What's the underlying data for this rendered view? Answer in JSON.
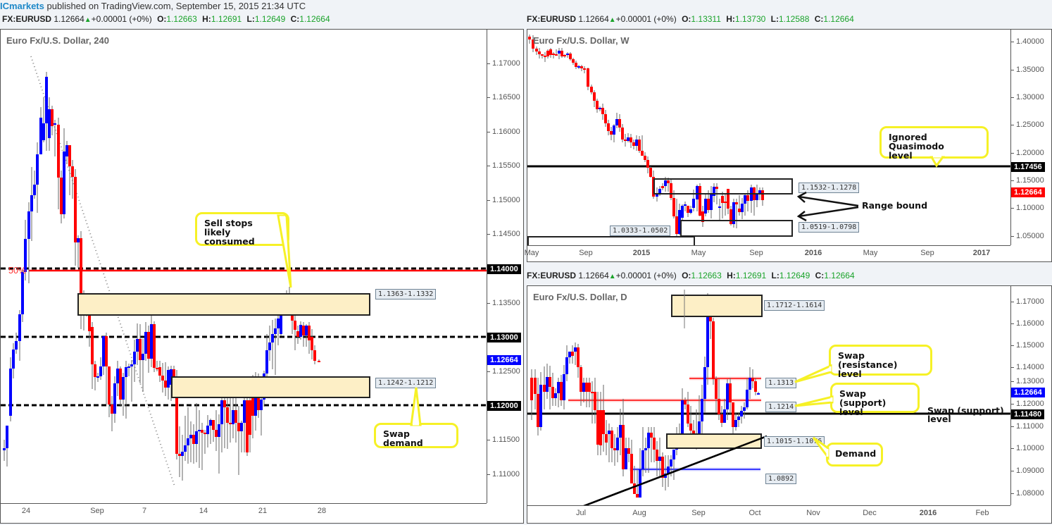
{
  "publish": {
    "brand": "ICmarkets",
    "text": " published on TradingView.com, September 15, 2015 21:34 UTC"
  },
  "colors": {
    "bull": "#0000ff",
    "bear": "#ff0000",
    "ohlc_value": "#1aa32a",
    "zone_fill": "#fdefc6",
    "callout_border": "#f6f126"
  },
  "panels": {
    "h4": {
      "legend": {
        "symbol": "FX:EURUSD",
        "price": "1.12664",
        "change": "+0.00001 (+0%)",
        "o_label": "O:",
        "o": "1.12663",
        "h_label": "H:",
        "h": "1.12691",
        "l_label": "L:",
        "l": "1.12649",
        "c_label": "C:",
        "c": "1.12664"
      },
      "title": "Euro Fx/U.S. Dollar, 240",
      "y_ticks": [
        "1.17000",
        "1.16500",
        "1.16000",
        "1.15500",
        "1.15000",
        "1.14500",
        "1.13500",
        "1.12500",
        "1.11500",
        "1.11000"
      ],
      "price_labels": [
        {
          "value": "1.14000",
          "color": "#000000"
        },
        {
          "value": "1.13000",
          "color": "#000000"
        },
        {
          "value": "1.12664",
          "color": "#0000ff"
        },
        {
          "value": "1.12000",
          "color": "#000000"
        }
      ],
      "x_ticks": [
        "24",
        "Sep",
        "7",
        "14",
        "21",
        "28"
      ],
      "fib_label": "50%",
      "zones": [
        {
          "label": "1.1363-1.1332"
        },
        {
          "label": "1.1242-1.1212"
        }
      ],
      "callouts": [
        {
          "text": "Sell stops likely consumed",
          "line1": "Sell stops",
          "line2": "likely consumed"
        },
        {
          "text": "Swap demand"
        }
      ]
    },
    "weekly": {
      "legend": {
        "symbol": "FX:EURUSD",
        "price": "1.12664",
        "change": "+0.00001 (+0%)",
        "o_label": "O:",
        "o": "1.13311",
        "h_label": "H:",
        "h": "1.13730",
        "l_label": "L:",
        "l": "1.12588",
        "c_label": "C:",
        "c": "1.12664"
      },
      "title": "Euro Fx/U.S. Dollar, W",
      "y_ticks": [
        "1.40000",
        "1.35000",
        "1.30000",
        "1.25000",
        "1.20000",
        "1.15000",
        "1.10000",
        "1.05000"
      ],
      "price_labels": [
        {
          "value": "1.17456",
          "color": "#000000"
        },
        {
          "value": "1.12664",
          "color": "#ff0000"
        }
      ],
      "x_ticks": [
        "May",
        "Sep",
        "2015",
        "May",
        "Sep",
        "2016",
        "May",
        "Sep",
        "2017"
      ],
      "zones": [
        {
          "label": "1.1532-1.1278"
        },
        {
          "label": "1.0519-1.0798"
        },
        {
          "label": "1.0333-1.0502"
        }
      ],
      "callouts": [
        {
          "line1": "Ignored Quasimodo",
          "line2": "level"
        }
      ],
      "annotation": "Range bound"
    },
    "daily": {
      "legend": {
        "symbol": "FX:EURUSD",
        "price": "1.12664",
        "change": "+0.00001 (+0%)",
        "o_label": "O:",
        "o": "1.12663",
        "h_label": "H:",
        "h": "1.12691",
        "l_label": "L:",
        "l": "1.12649",
        "c_label": "C:",
        "c": "1.12664"
      },
      "title": "Euro Fx/U.S. Dollar, D",
      "y_ticks": [
        "1.17000",
        "1.16000",
        "1.15000",
        "1.14000",
        "1.13000",
        "1.12000",
        "1.11000",
        "1.10000",
        "1.09000",
        "1.08000"
      ],
      "price_labels": [
        {
          "value": "1.12664",
          "color": "#0000ff"
        },
        {
          "value": "1.11480",
          "color": "#000000"
        }
      ],
      "x_ticks": [
        "Jul",
        "Aug",
        "Sep",
        "Oct",
        "Nov",
        "Dec",
        "2016",
        "Feb"
      ],
      "zones": [
        {
          "label": "1.1712-1.1614"
        },
        {
          "label": "1.1015-1.1076"
        }
      ],
      "level_tags": [
        {
          "label": "1.1313"
        },
        {
          "label": "1.1214"
        },
        {
          "label": "1.0892"
        }
      ],
      "callouts": [
        {
          "line1": "Swap (resistance)",
          "line2": "level"
        },
        {
          "line1": "Swap (support)",
          "line2": "level"
        },
        {
          "line1": "Demand"
        }
      ],
      "annotation": {
        "line1": "Swap (support)",
        "line2": "level"
      }
    }
  },
  "chart_data": [
    {
      "type": "candlestick",
      "title": "Euro Fx/U.S. Dollar, 240",
      "symbol": "FX:EURUSD",
      "timeframe": "240",
      "x_ticks": [
        "24",
        "Sep",
        "7",
        "14",
        "21",
        "28"
      ],
      "ylim": [
        1.104,
        1.176
      ],
      "last_price": 1.12664,
      "horizontal_levels": [
        {
          "price": 1.14,
          "style": "dashed black + red 50% fib"
        },
        {
          "price": 1.13,
          "style": "dashed black"
        },
        {
          "price": 1.12,
          "style": "dashed black"
        }
      ],
      "zones": [
        {
          "range": [
            1.1332,
            1.1363
          ],
          "label": "1.1363-1.1332"
        },
        {
          "range": [
            1.1212,
            1.1242
          ],
          "label": "1.1242-1.1212",
          "annotation": "Swap demand"
        }
      ],
      "annotations": [
        "Sell stops likely consumed",
        "Swap demand",
        "50%"
      ],
      "trendline": {
        "style": "dotted grey",
        "from": "Aug 24 high ~1.1740",
        "to": "Sep 4 ~1.1085"
      }
    },
    {
      "type": "candlestick",
      "title": "Euro Fx/U.S. Dollar, W",
      "symbol": "FX:EURUSD",
      "timeframe": "W",
      "x_ticks": [
        "May",
        "Sep",
        "2015",
        "May",
        "Sep",
        "2016",
        "May",
        "Sep",
        "2017"
      ],
      "ylim": [
        1.025,
        1.415
      ],
      "last_price": 1.12664,
      "horizontal_levels": [
        {
          "price": 1.17456,
          "label": "Ignored Quasimodo level"
        }
      ],
      "zones": [
        {
          "range": [
            1.1278,
            1.1532
          ],
          "label": "1.1532-1.1278"
        },
        {
          "range": [
            1.0519,
            1.0798
          ],
          "label": "1.0519-1.0798"
        },
        {
          "range": [
            1.0333,
            1.0502
          ],
          "label": "1.0333-1.0502"
        }
      ],
      "annotations": [
        "Ignored Quasimodo level",
        "Range bound"
      ]
    },
    {
      "type": "candlestick",
      "title": "Euro Fx/U.S. Dollar, D",
      "symbol": "FX:EURUSD",
      "timeframe": "D",
      "x_ticks": [
        "Jul",
        "Aug",
        "Sep",
        "Oct",
        "Nov",
        "Dec",
        "2016",
        "Feb"
      ],
      "ylim": [
        1.074,
        1.176
      ],
      "last_price": 1.12664,
      "horizontal_levels": [
        {
          "price": 1.1313,
          "color": "red",
          "label": "Swap (resistance) level"
        },
        {
          "price": 1.1214,
          "color": "red",
          "label": "Swap (support) level"
        },
        {
          "price": 1.1148,
          "color": "black",
          "label": "Swap (support) level"
        },
        {
          "price": 1.0892,
          "color": "blue"
        }
      ],
      "zones": [
        {
          "range": [
            1.1614,
            1.1712
          ],
          "label": "1.1712-1.1614"
        },
        {
          "range": [
            1.1015,
            1.1076
          ],
          "label": "1.1015-1.1076",
          "annotation": "Demand"
        }
      ],
      "trendline": {
        "style": "solid black",
        "direction": "ascending",
        "from": "late Jun ~1.0775",
        "to": "early Oct ~1.1060"
      }
    }
  ]
}
